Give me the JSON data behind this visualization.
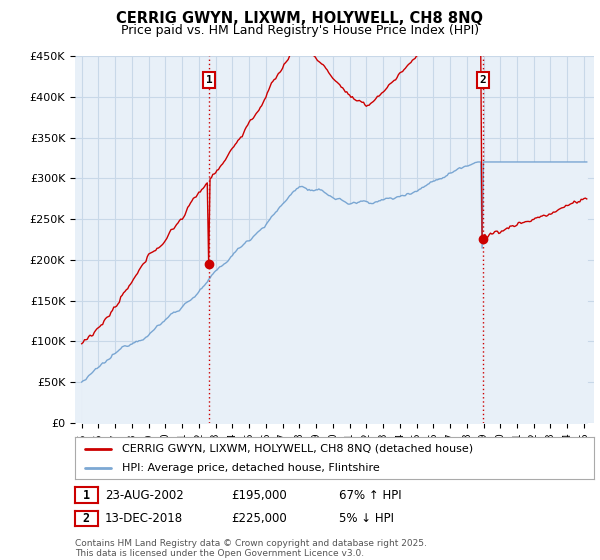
{
  "title": "CERRIG GWYN, LIXWM, HOLYWELL, CH8 8NQ",
  "subtitle": "Price paid vs. HM Land Registry's House Price Index (HPI)",
  "ylim": [
    0,
    450000
  ],
  "yticks": [
    0,
    50000,
    100000,
    150000,
    200000,
    250000,
    300000,
    350000,
    400000,
    450000
  ],
  "background_color": "#ffffff",
  "grid_color": "#c8d8e8",
  "chart_bg": "#e8f0f8",
  "sale1_t": 2002.622,
  "sale1_price": 195000,
  "sale2_t": 2018.958,
  "sale2_price": 225000,
  "legend_line1": "CERRIG GWYN, LIXWM, HOLYWELL, CH8 8NQ (detached house)",
  "legend_line2": "HPI: Average price, detached house, Flintshire",
  "footnote1": "Contains HM Land Registry data © Crown copyright and database right 2025.",
  "footnote2": "This data is licensed under the Open Government Licence v3.0.",
  "line_color_red": "#cc0000",
  "line_color_blue": "#6699cc",
  "vline_color": "#cc0000",
  "box_color": "#cc0000",
  "ann1_date": "23-AUG-2002",
  "ann1_price": "£195,000",
  "ann1_hpi": "67% ↑ HPI",
  "ann2_date": "13-DEC-2018",
  "ann2_price": "£225,000",
  "ann2_hpi": "5% ↓ HPI"
}
